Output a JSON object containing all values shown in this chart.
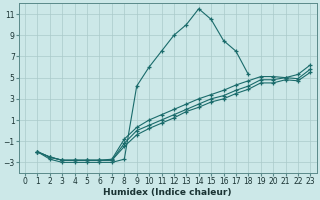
{
  "xlabel": "Humidex (Indice chaleur)",
  "background_color": "#cce8e8",
  "grid_color": "#aacaca",
  "line_color": "#1a6b6b",
  "xlim": [
    -0.5,
    23.5
  ],
  "ylim": [
    -4,
    12
  ],
  "xticks": [
    0,
    1,
    2,
    3,
    4,
    5,
    6,
    7,
    8,
    9,
    10,
    11,
    12,
    13,
    14,
    15,
    16,
    17,
    18,
    19,
    20,
    21,
    22,
    23
  ],
  "yticks": [
    -3,
    -1,
    1,
    3,
    5,
    7,
    9,
    11
  ],
  "series": [
    {
      "x": [
        1,
        2,
        3,
        4,
        5,
        6,
        7,
        8,
        9,
        10,
        11,
        12,
        13,
        14,
        15,
        16,
        17,
        18
      ],
      "y": [
        -2,
        -2.7,
        -3,
        -3,
        -3,
        -3,
        -3,
        -2.7,
        4.2,
        6.0,
        7.5,
        9.0,
        10.0,
        11.5,
        10.5,
        8.5,
        7.5,
        5.3
      ]
    },
    {
      "x": [
        1,
        2,
        3,
        4,
        5,
        6,
        7,
        8,
        9,
        10,
        11,
        12,
        13,
        14,
        15,
        16,
        17,
        18,
        19,
        20,
        21,
        22,
        23
      ],
      "y": [
        -2,
        -2.5,
        -2.8,
        -2.8,
        -2.8,
        -2.8,
        -2.7,
        -0.8,
        0.3,
        1.0,
        1.5,
        2.0,
        2.5,
        3.0,
        3.4,
        3.8,
        4.3,
        4.7,
        5.1,
        5.1,
        5.0,
        5.3,
        6.2
      ]
    },
    {
      "x": [
        1,
        2,
        3,
        4,
        5,
        6,
        7,
        8,
        9,
        10,
        11,
        12,
        13,
        14,
        15,
        16,
        17,
        18,
        19,
        20,
        21,
        22,
        23
      ],
      "y": [
        -2,
        -2.5,
        -2.8,
        -2.8,
        -2.8,
        -2.8,
        -2.8,
        -1.2,
        0.0,
        0.5,
        1.0,
        1.5,
        2.0,
        2.5,
        3.0,
        3.3,
        3.8,
        4.2,
        4.8,
        4.8,
        5.0,
        4.9,
        5.8
      ]
    },
    {
      "x": [
        1,
        2,
        3,
        4,
        5,
        6,
        7,
        8,
        9,
        10,
        11,
        12,
        13,
        14,
        15,
        16,
        17,
        18,
        19,
        20,
        21,
        22,
        23
      ],
      "y": [
        -2,
        -2.5,
        -2.8,
        -2.8,
        -2.8,
        -2.8,
        -2.8,
        -1.5,
        -0.4,
        0.2,
        0.7,
        1.2,
        1.8,
        2.2,
        2.7,
        3.0,
        3.5,
        3.9,
        4.5,
        4.5,
        4.8,
        4.7,
        5.5
      ]
    }
  ]
}
